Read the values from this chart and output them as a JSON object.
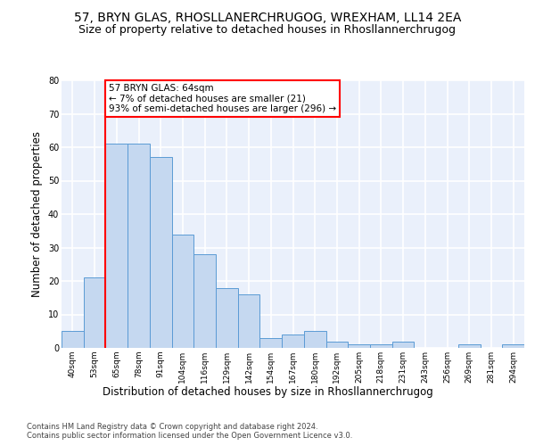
{
  "title1": "57, BRYN GLAS, RHOSLLANERCHRUGOG, WREXHAM, LL14 2EA",
  "title2": "Size of property relative to detached houses in Rhosllannerchrugog",
  "xlabel": "Distribution of detached houses by size in Rhosllannerchrugog",
  "ylabel": "Number of detached properties",
  "footer1": "Contains HM Land Registry data © Crown copyright and database right 2024.",
  "footer2": "Contains public sector information licensed under the Open Government Licence v3.0.",
  "categories": [
    "40sqm",
    "53sqm",
    "65sqm",
    "78sqm",
    "91sqm",
    "104sqm",
    "116sqm",
    "129sqm",
    "142sqm",
    "154sqm",
    "167sqm",
    "180sqm",
    "192sqm",
    "205sqm",
    "218sqm",
    "231sqm",
    "243sqm",
    "256sqm",
    "269sqm",
    "281sqm",
    "294sqm"
  ],
  "values": [
    5,
    21,
    61,
    61,
    57,
    34,
    28,
    18,
    16,
    3,
    4,
    5,
    2,
    1,
    1,
    2,
    0,
    0,
    1,
    0,
    1
  ],
  "bar_color": "#c5d8f0",
  "bar_edge_color": "#5b9bd5",
  "annotation_line1": "57 BRYN GLAS: 64sqm",
  "annotation_line2": "← 7% of detached houses are smaller (21)",
  "annotation_line3": "93% of semi-detached houses are larger (296) →",
  "annotation_box_color": "white",
  "annotation_box_edge_color": "red",
  "vline_color": "red",
  "vline_pos": 1.5,
  "ylim_max": 80,
  "yticks": [
    0,
    10,
    20,
    30,
    40,
    50,
    60,
    70,
    80
  ],
  "background_color": "#eaf0fb",
  "grid_color": "white",
  "title1_fontsize": 10,
  "title2_fontsize": 9,
  "xlabel_fontsize": 8.5,
  "ylabel_fontsize": 8.5,
  "annotation_fontsize": 7.5,
  "tick_fontsize": 6.5,
  "footer_fontsize": 6
}
